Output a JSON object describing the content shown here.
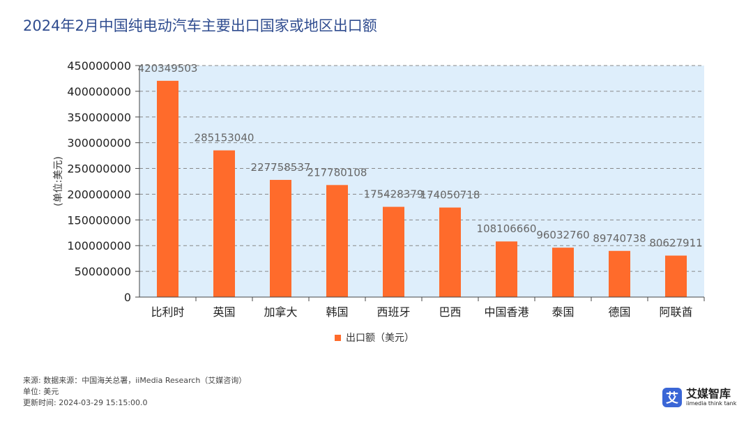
{
  "title": "2024年2月中国纯电动汽车主要出口国家或地区出口额",
  "colors": {
    "bar": "#ff6b2b",
    "plot_bg": "#deeefb",
    "grid": "#888888",
    "title": "#2f4c8f"
  },
  "chart_data": {
    "type": "bar",
    "title": "2024年2月中国纯电动汽车主要出口国家或地区出口额",
    "xlabel": "",
    "ylabel": "(单位:美元)",
    "ylim": [
      0,
      450000000
    ],
    "yticks": [
      0,
      50000000,
      100000000,
      150000000,
      200000000,
      250000000,
      300000000,
      350000000,
      400000000,
      450000000
    ],
    "grid": true,
    "legend_position": "bottom-center",
    "categories": [
      "比利时",
      "英国",
      "加拿大",
      "韩国",
      "西班牙",
      "巴西",
      "中国香港",
      "泰国",
      "德国",
      "阿联酋"
    ],
    "series": [
      {
        "name": "出口额（美元）",
        "values": [
          420349503,
          285153040,
          227758537,
          217780108,
          175428379,
          174050718,
          108106660,
          96032760,
          89740738,
          80627911
        ]
      }
    ]
  },
  "footer": {
    "source": "来源: 数据来源：中国海关总署，iiMedia Research（艾媒咨询）",
    "unit": "单位: 美元",
    "updated": "更新时间: 2024-03-29 15:15:00.0"
  },
  "logo": {
    "name": "艾媒智库",
    "sub": "iimedia think tank",
    "mark": "艾"
  }
}
